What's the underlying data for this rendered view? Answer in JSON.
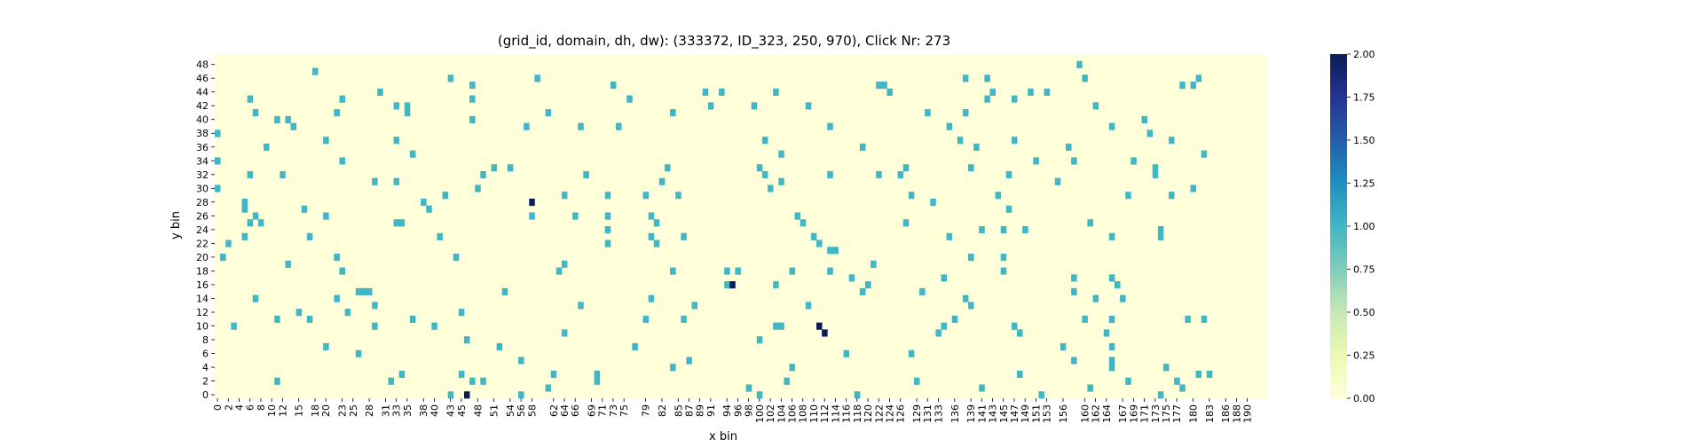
{
  "chart_data": {
    "type": "heatmap",
    "title": "(grid_id, domain, dh, dw): (333372, ID_323, 250, 970), Click Nr: 273",
    "xlabel": "x bin",
    "ylabel": "y bin",
    "n_cols": 194,
    "n_rows": 50,
    "x_ticks": [
      0,
      2,
      4,
      6,
      8,
      10,
      12,
      15,
      18,
      20,
      23,
      25,
      28,
      31,
      33,
      35,
      38,
      40,
      43,
      45,
      48,
      51,
      54,
      56,
      58,
      62,
      64,
      66,
      69,
      71,
      73,
      75,
      79,
      82,
      85,
      87,
      89,
      91,
      94,
      96,
      98,
      100,
      102,
      104,
      106,
      108,
      110,
      112,
      114,
      116,
      118,
      120,
      122,
      124,
      126,
      129,
      131,
      133,
      136,
      139,
      141,
      143,
      145,
      147,
      149,
      151,
      153,
      156,
      160,
      162,
      164,
      167,
      169,
      171,
      173,
      175,
      177,
      180,
      183,
      186,
      188,
      190
    ],
    "y_ticks": [
      48,
      46,
      44,
      42,
      40,
      38,
      36,
      34,
      32,
      30,
      28,
      26,
      24,
      22,
      20,
      18,
      16,
      14,
      12,
      10,
      8,
      6,
      4,
      2,
      0
    ],
    "colorbar": {
      "min": 0.0,
      "max": 2.0,
      "ticks": [
        "2.00",
        "1.75",
        "1.50",
        "1.25",
        "1.00",
        "0.75",
        "0.50",
        "0.25",
        "0.00"
      ]
    },
    "colors": {
      "low": "#ffffd9",
      "mid": "#41b6c4",
      "high": "#081d58"
    },
    "cells": [
      [
        0,
        38,
        1
      ],
      [
        0,
        34,
        1
      ],
      [
        0,
        30,
        1
      ],
      [
        1,
        20,
        1
      ],
      [
        2,
        22,
        1
      ],
      [
        3,
        10,
        1
      ],
      [
        5,
        28,
        1
      ],
      [
        5,
        27,
        1
      ],
      [
        5,
        23,
        1
      ],
      [
        6,
        43,
        1
      ],
      [
        6,
        32,
        1
      ],
      [
        6,
        25,
        1
      ],
      [
        7,
        41,
        1
      ],
      [
        7,
        26,
        1
      ],
      [
        7,
        14,
        1
      ],
      [
        8,
        25,
        1
      ],
      [
        9,
        36,
        1
      ],
      [
        11,
        40,
        1
      ],
      [
        11,
        2,
        1
      ],
      [
        11,
        11,
        1
      ],
      [
        12,
        32,
        1
      ],
      [
        13,
        40,
        1
      ],
      [
        13,
        19,
        1
      ],
      [
        14,
        39,
        1
      ],
      [
        15,
        12,
        1
      ],
      [
        16,
        27,
        1
      ],
      [
        17,
        23,
        1
      ],
      [
        17,
        11,
        1
      ],
      [
        18,
        47,
        1
      ],
      [
        20,
        37,
        1
      ],
      [
        20,
        26,
        1
      ],
      [
        20,
        7,
        1
      ],
      [
        22,
        41,
        1
      ],
      [
        22,
        20,
        1
      ],
      [
        22,
        14,
        1
      ],
      [
        23,
        43,
        1
      ],
      [
        23,
        34,
        1
      ],
      [
        23,
        18,
        1
      ],
      [
        24,
        12,
        1
      ],
      [
        26,
        6,
        1
      ],
      [
        26,
        15,
        1
      ],
      [
        27,
        15,
        1
      ],
      [
        28,
        15,
        1
      ],
      [
        29,
        31,
        1
      ],
      [
        29,
        13,
        1
      ],
      [
        29,
        10,
        1
      ],
      [
        30,
        44,
        1
      ],
      [
        32,
        2,
        1
      ],
      [
        33,
        42,
        1
      ],
      [
        33,
        37,
        1
      ],
      [
        33,
        31,
        1
      ],
      [
        33,
        25,
        1
      ],
      [
        34,
        25,
        1
      ],
      [
        34,
        3,
        1
      ],
      [
        35,
        42,
        1
      ],
      [
        35,
        41,
        1
      ],
      [
        36,
        35,
        1
      ],
      [
        36,
        11,
        1
      ],
      [
        38,
        28,
        1
      ],
      [
        39,
        27,
        1
      ],
      [
        40,
        10,
        1
      ],
      [
        41,
        23,
        1
      ],
      [
        42,
        29,
        1
      ],
      [
        43,
        46,
        1
      ],
      [
        43,
        0,
        1
      ],
      [
        44,
        20,
        1
      ],
      [
        45,
        3,
        1
      ],
      [
        45,
        12,
        1
      ],
      [
        46,
        8,
        1
      ],
      [
        46,
        0,
        2
      ],
      [
        47,
        45,
        1
      ],
      [
        47,
        43,
        1
      ],
      [
        47,
        40,
        1
      ],
      [
        47,
        2,
        1
      ],
      [
        48,
        30,
        1
      ],
      [
        49,
        32,
        1
      ],
      [
        49,
        2,
        1
      ],
      [
        51,
        33,
        1
      ],
      [
        52,
        7,
        1
      ],
      [
        53,
        15,
        1
      ],
      [
        54,
        33,
        1
      ],
      [
        56,
        5,
        1
      ],
      [
        56,
        0,
        1
      ],
      [
        57,
        39,
        1
      ],
      [
        58,
        28,
        2
      ],
      [
        58,
        26,
        1
      ],
      [
        59,
        46,
        1
      ],
      [
        61,
        41,
        1
      ],
      [
        61,
        1,
        1
      ],
      [
        62,
        3,
        1
      ],
      [
        63,
        18,
        1
      ],
      [
        64,
        19,
        1
      ],
      [
        64,
        29,
        1
      ],
      [
        64,
        9,
        1
      ],
      [
        66,
        26,
        1
      ],
      [
        67,
        39,
        1
      ],
      [
        67,
        13,
        1
      ],
      [
        68,
        32,
        1
      ],
      [
        70,
        3,
        1
      ],
      [
        70,
        2,
        1
      ],
      [
        72,
        29,
        1
      ],
      [
        72,
        26,
        1
      ],
      [
        72,
        24,
        1
      ],
      [
        72,
        22,
        1
      ],
      [
        73,
        45,
        1
      ],
      [
        74,
        39,
        1
      ],
      [
        76,
        43,
        1
      ],
      [
        77,
        7,
        1
      ],
      [
        79,
        29,
        1
      ],
      [
        79,
        11,
        1
      ],
      [
        80,
        26,
        1
      ],
      [
        80,
        14,
        1
      ],
      [
        80,
        23,
        1
      ],
      [
        81,
        25,
        1
      ],
      [
        81,
        22,
        1
      ],
      [
        82,
        31,
        1
      ],
      [
        83,
        33,
        1
      ],
      [
        84,
        41,
        1
      ],
      [
        84,
        18,
        1
      ],
      [
        84,
        4,
        1
      ],
      [
        85,
        29,
        1
      ],
      [
        86,
        23,
        1
      ],
      [
        86,
        11,
        1
      ],
      [
        87,
        5,
        1
      ],
      [
        88,
        13,
        1
      ],
      [
        90,
        44,
        1
      ],
      [
        91,
        42,
        1
      ],
      [
        93,
        44,
        1
      ],
      [
        94,
        18,
        1
      ],
      [
        94,
        16,
        1
      ],
      [
        95,
        16,
        2
      ],
      [
        96,
        18,
        1
      ],
      [
        98,
        1,
        1
      ],
      [
        99,
        42,
        1
      ],
      [
        100,
        33,
        1
      ],
      [
        100,
        8,
        1
      ],
      [
        100,
        0,
        1
      ],
      [
        101,
        37,
        1
      ],
      [
        101,
        32,
        1
      ],
      [
        102,
        30,
        1
      ],
      [
        103,
        44,
        1
      ],
      [
        103,
        16,
        1
      ],
      [
        103,
        10,
        1
      ],
      [
        104,
        10,
        1
      ],
      [
        104,
        31,
        1
      ],
      [
        104,
        35,
        1
      ],
      [
        105,
        2,
        1
      ],
      [
        106,
        18,
        1
      ],
      [
        106,
        4,
        1
      ],
      [
        107,
        26,
        1
      ],
      [
        108,
        25,
        1
      ],
      [
        109,
        42,
        1
      ],
      [
        109,
        13,
        1
      ],
      [
        110,
        23,
        1
      ],
      [
        111,
        22,
        1
      ],
      [
        111,
        10,
        2
      ],
      [
        112,
        9,
        2
      ],
      [
        113,
        21,
        1
      ],
      [
        113,
        18,
        1
      ],
      [
        113,
        32,
        1
      ],
      [
        113,
        39,
        1
      ],
      [
        114,
        21,
        1
      ],
      [
        116,
        6,
        1
      ],
      [
        117,
        17,
        1
      ],
      [
        118,
        0,
        1
      ],
      [
        119,
        15,
        1
      ],
      [
        119,
        36,
        1
      ],
      [
        120,
        16,
        1
      ],
      [
        121,
        19,
        1
      ],
      [
        122,
        32,
        1
      ],
      [
        122,
        45,
        1
      ],
      [
        123,
        45,
        1
      ],
      [
        124,
        44,
        1
      ],
      [
        126,
        32,
        1
      ],
      [
        127,
        25,
        1
      ],
      [
        127,
        33,
        1
      ],
      [
        128,
        29,
        1
      ],
      [
        128,
        6,
        1
      ],
      [
        129,
        2,
        1
      ],
      [
        130,
        15,
        1
      ],
      [
        131,
        41,
        1
      ],
      [
        132,
        28,
        1
      ],
      [
        133,
        9,
        1
      ],
      [
        134,
        17,
        1
      ],
      [
        134,
        10,
        1
      ],
      [
        135,
        39,
        1
      ],
      [
        135,
        23,
        1
      ],
      [
        136,
        11,
        1
      ],
      [
        137,
        37,
        1
      ],
      [
        138,
        41,
        1
      ],
      [
        138,
        46,
        1
      ],
      [
        138,
        14,
        1
      ],
      [
        139,
        33,
        1
      ],
      [
        139,
        20,
        1
      ],
      [
        139,
        13,
        1
      ],
      [
        140,
        36,
        1
      ],
      [
        141,
        24,
        1
      ],
      [
        141,
        1,
        1
      ],
      [
        142,
        43,
        1
      ],
      [
        142,
        46,
        1
      ],
      [
        143,
        44,
        1
      ],
      [
        144,
        29,
        1
      ],
      [
        145,
        24,
        1
      ],
      [
        145,
        20,
        1
      ],
      [
        145,
        18,
        1
      ],
      [
        146,
        27,
        1
      ],
      [
        146,
        32,
        1
      ],
      [
        147,
        43,
        1
      ],
      [
        147,
        37,
        1
      ],
      [
        147,
        10,
        1
      ],
      [
        148,
        9,
        1
      ],
      [
        148,
        3,
        1
      ],
      [
        149,
        24,
        1
      ],
      [
        150,
        44,
        1
      ],
      [
        151,
        34,
        1
      ],
      [
        152,
        0,
        1
      ],
      [
        153,
        44,
        1
      ],
      [
        155,
        31,
        1
      ],
      [
        156,
        7,
        1
      ],
      [
        157,
        36,
        1
      ],
      [
        158,
        34,
        1
      ],
      [
        158,
        17,
        1
      ],
      [
        158,
        15,
        1
      ],
      [
        158,
        5,
        1
      ],
      [
        159,
        48,
        1
      ],
      [
        160,
        46,
        1
      ],
      [
        160,
        11,
        1
      ],
      [
        161,
        25,
        1
      ],
      [
        161,
        1,
        1
      ],
      [
        162,
        42,
        1
      ],
      [
        162,
        14,
        1
      ],
      [
        164,
        9,
        1
      ],
      [
        165,
        39,
        1
      ],
      [
        165,
        23,
        1
      ],
      [
        165,
        17,
        1
      ],
      [
        165,
        7,
        1
      ],
      [
        165,
        5,
        1
      ],
      [
        165,
        4,
        1
      ],
      [
        165,
        11,
        1
      ],
      [
        166,
        16,
        1
      ],
      [
        167,
        14,
        1
      ],
      [
        168,
        29,
        1
      ],
      [
        168,
        2,
        1
      ],
      [
        169,
        34,
        1
      ],
      [
        171,
        40,
        1
      ],
      [
        172,
        38,
        1
      ],
      [
        173,
        33,
        1
      ],
      [
        173,
        32,
        1
      ],
      [
        174,
        23,
        1
      ],
      [
        174,
        24,
        1
      ],
      [
        174,
        0,
        1
      ],
      [
        175,
        4,
        1
      ],
      [
        176,
        37,
        1
      ],
      [
        176,
        29,
        1
      ],
      [
        177,
        2,
        1
      ],
      [
        178,
        45,
        1
      ],
      [
        178,
        1,
        1
      ],
      [
        179,
        11,
        1
      ],
      [
        180,
        45,
        1
      ],
      [
        180,
        30,
        1
      ],
      [
        181,
        46,
        1
      ],
      [
        181,
        3,
        1
      ],
      [
        182,
        35,
        1
      ],
      [
        182,
        11,
        1
      ],
      [
        183,
        3,
        1
      ]
    ]
  }
}
